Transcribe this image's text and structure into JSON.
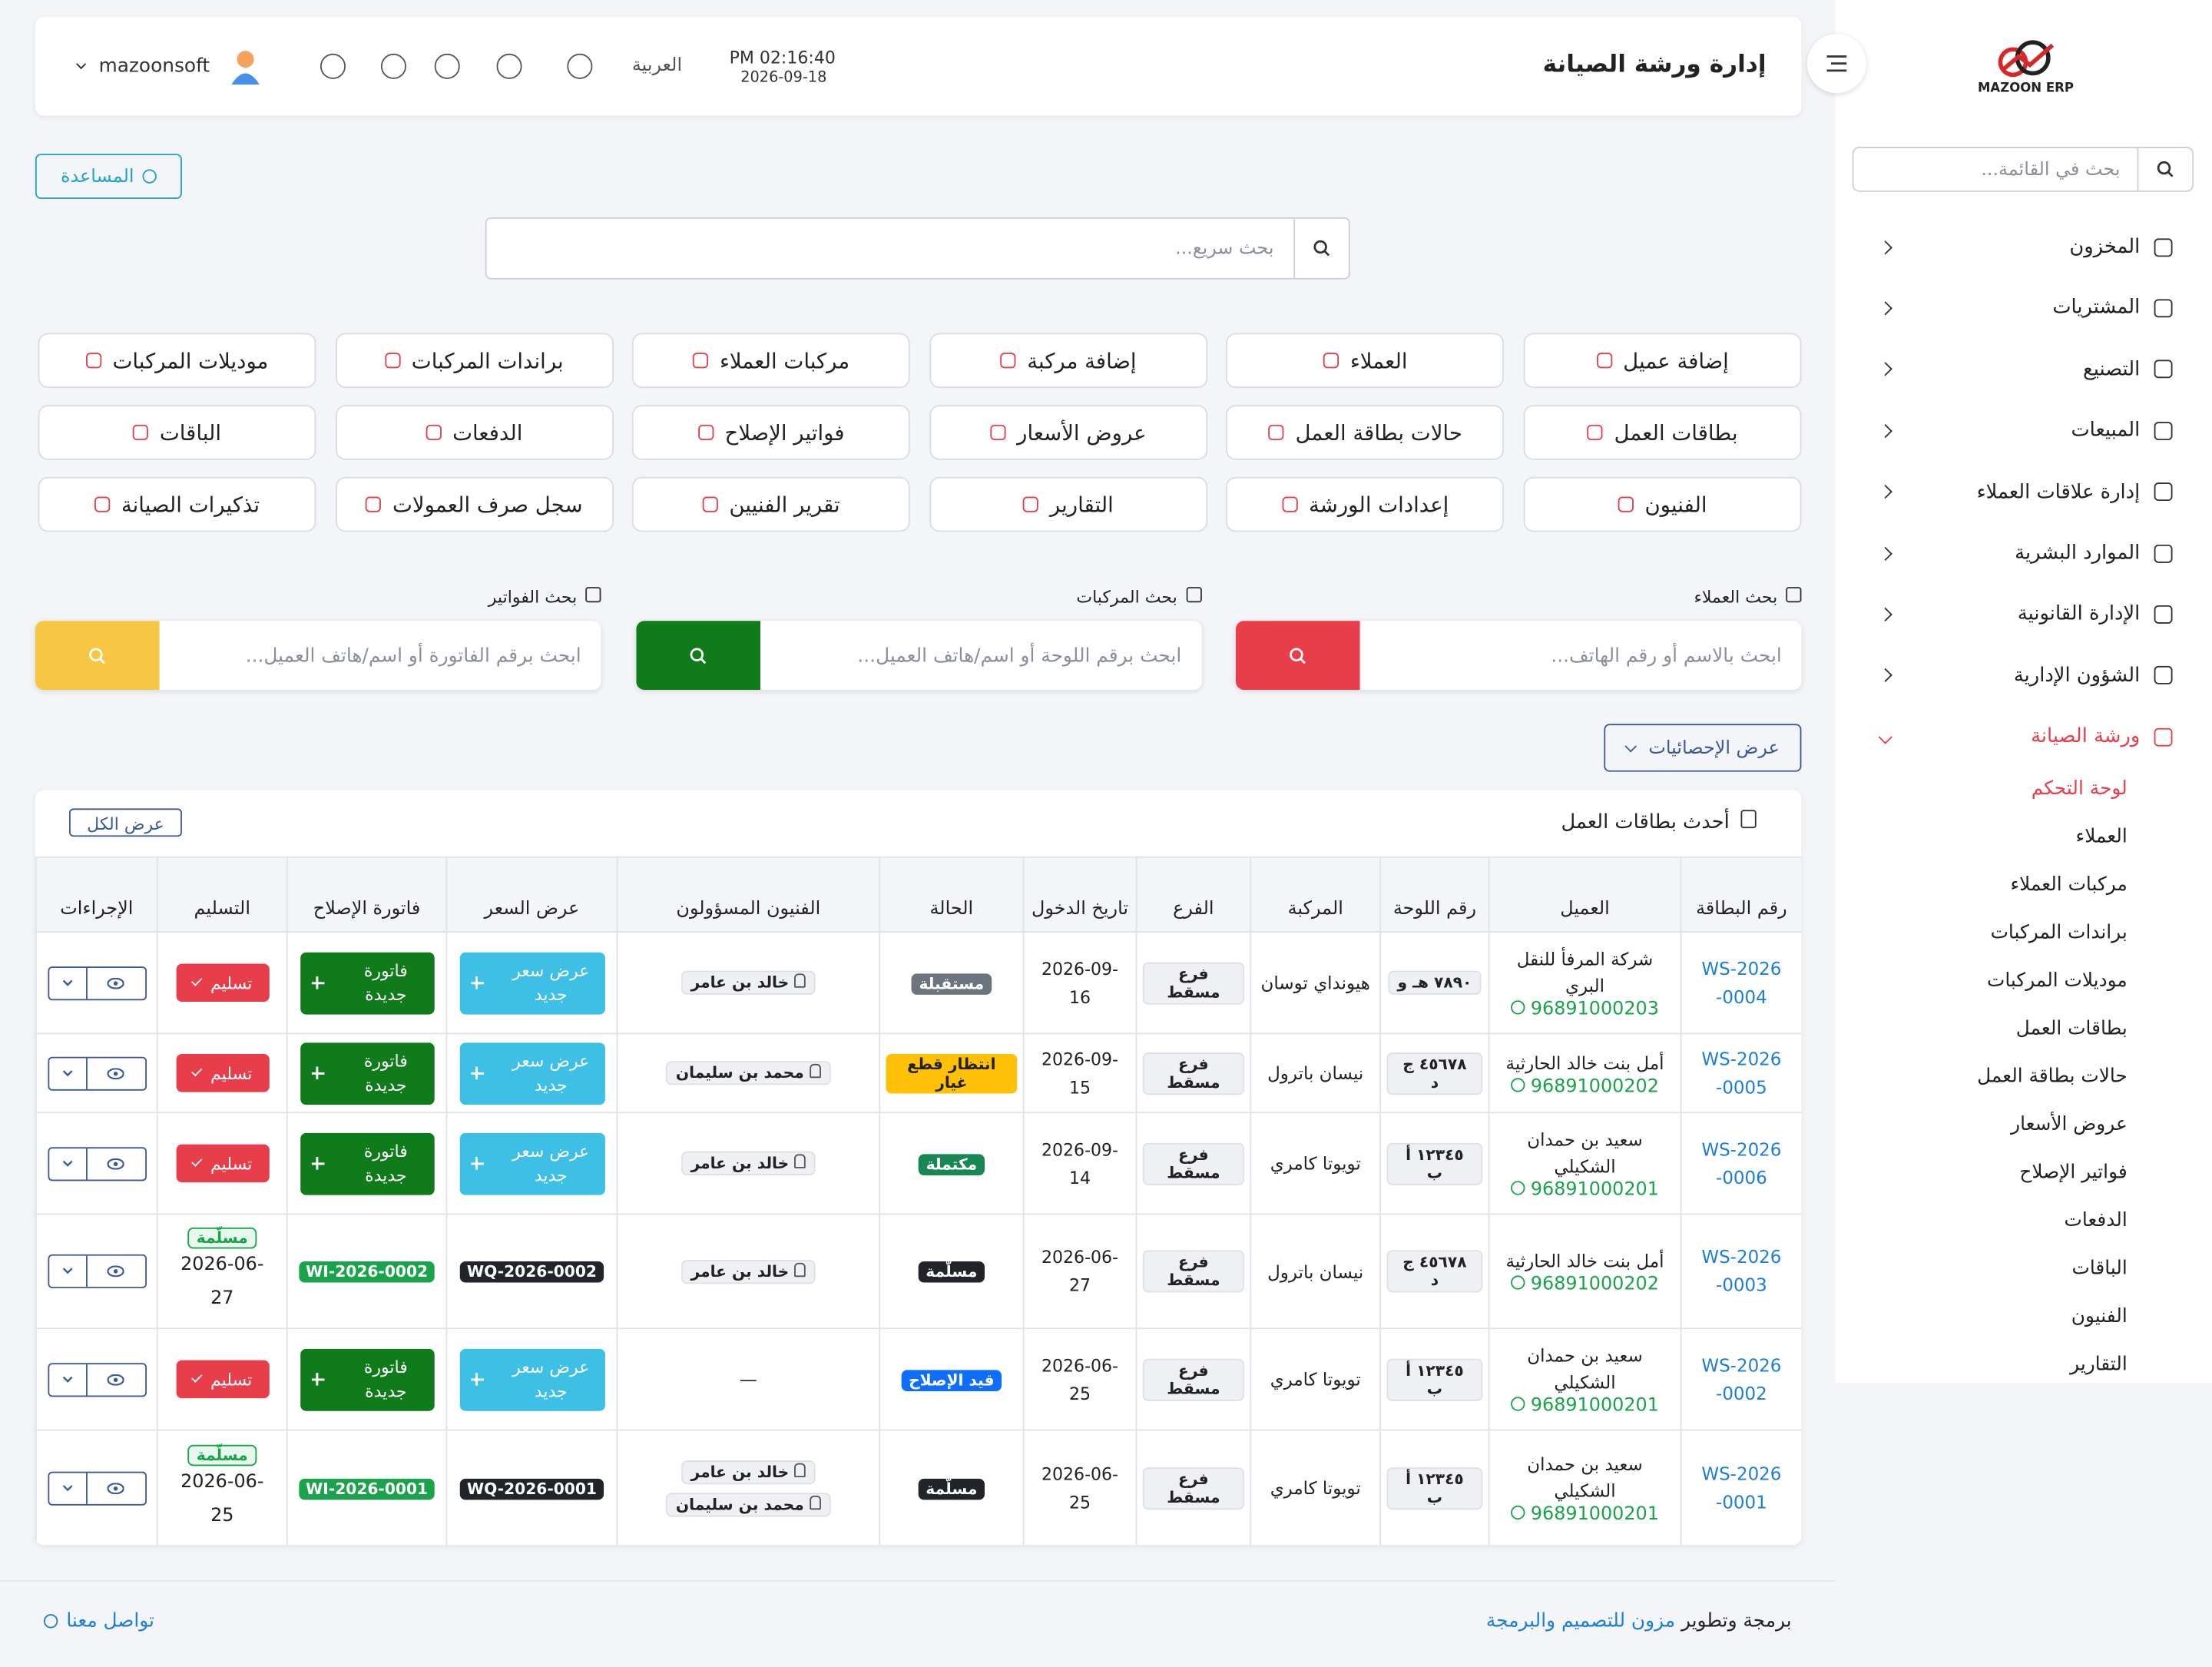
{
  "sidebar": {
    "logo": "MAZOON ERP",
    "search_placeholder": "بحث في القائمة...",
    "menu": [
      "المخزون",
      "المشتريات",
      "التصنيع",
      "المبيعات",
      "إدارة علاقات العملاء",
      "الموارد البشرية",
      "الإدارة القانونية",
      "الشؤون الإدارية",
      "ورشة الصيانة"
    ],
    "active_menu": 8,
    "submenu": [
      "لوحة التحكم",
      "العملاء",
      "مركبات العملاء",
      "براندات المركبات",
      "موديلات المركبات",
      "بطاقات العمل",
      "حالات بطاقة العمل",
      "عروض الأسعار",
      "فواتير الإصلاح",
      "الدفعات",
      "الباقات",
      "الفنيون",
      "التقارير"
    ],
    "active_submenu": 0
  },
  "header": {
    "title": "إدارة ورشة الصيانة",
    "time": "PM 02:16:40",
    "date": "2026-09-18",
    "language": "العربية",
    "user": "mazoonsoft"
  },
  "help_button": "المساعدة",
  "quick_search_placeholder": "بحث سريع...",
  "shortcuts": [
    "إضافة عميل",
    "العملاء",
    "إضافة مركبة",
    "مركبات العملاء",
    "براندات المركبات",
    "موديلات المركبات",
    "بطاقات العمل",
    "حالات بطاقة العمل",
    "عروض الأسعار",
    "فواتير الإصلاح",
    "الدفعات",
    "الباقات",
    "الفنيون",
    "إعدادات الورشة",
    "التقارير",
    "تقرير الفنيين",
    "سجل صرف العمولات",
    "تذكيرات الصيانة"
  ],
  "search_boxes": [
    {
      "label": "بحث العملاء",
      "placeholder": "ابحث بالاسم أو رقم الهاتف...",
      "color": "#e83e4c"
    },
    {
      "label": "بحث المركبات",
      "placeholder": "ابحث برقم اللوحة أو اسم/هاتف العميل...",
      "color": "#0f7b1a"
    },
    {
      "label": "بحث الفواتير",
      "placeholder": "ابحث برقم الفاتورة أو اسم/هاتف العميل...",
      "color": "#f7c744"
    }
  ],
  "stats_button": "عرض الإحصائيات",
  "table": {
    "title": "أحدث بطاقات العمل",
    "view_all": "عرض الكل",
    "columns": [
      "رقم البطاقة",
      "العميل",
      "رقم اللوحة",
      "المركبة",
      "الفرع",
      "تاريخ الدخول",
      "الحالة",
      "الفنيون المسؤولون",
      "عرض السعر",
      "فاتورة الإصلاح",
      "التسليم",
      "الإجراءات"
    ],
    "new_quote": "عرض سعر جديد",
    "new_invoice": "فاتورة جديدة",
    "deliver": "تسليم",
    "delivered": "مسلّمة",
    "empty": "—",
    "rows": [
      {
        "card": "WS-2026-0004",
        "client": "شركة المرفأ للنقل البري",
        "phone": "96891000203",
        "plate": "٧٨٩٠ هـ و",
        "vehicle": "هيونداي توسان",
        "branch": "فرع مسقط",
        "date": "2026-09-16",
        "status": "مستقبلة",
        "status_color": "#6c757d",
        "techs": [
          "خالد بن عامر"
        ],
        "quote": null,
        "invoice": null,
        "delivered_date": null
      },
      {
        "card": "WS-2026-0005",
        "client": "أمل بنت خالد الحارثية",
        "phone": "96891000202",
        "plate": "٤٥٦٧٨ ج د",
        "vehicle": "نيسان باترول",
        "branch": "فرع مسقط",
        "date": "2026-09-15",
        "status": "انتظار قطع غيار",
        "status_color": "#ffc107",
        "techs": [
          "محمد بن سليمان"
        ],
        "quote": null,
        "invoice": null,
        "delivered_date": null
      },
      {
        "card": "WS-2026-0006",
        "client": "سعيد بن حمدان الشكيلي",
        "phone": "96891000201",
        "plate": "١٢٣٤٥ أ ب",
        "vehicle": "تويوتا كامري",
        "branch": "فرع مسقط",
        "date": "2026-09-14",
        "status": "مكتملة",
        "status_color": "#198754",
        "techs": [
          "خالد بن عامر"
        ],
        "quote": null,
        "invoice": null,
        "delivered_date": null
      },
      {
        "card": "WS-2026-0003",
        "client": "أمل بنت خالد الحارثية",
        "phone": "96891000202",
        "plate": "٤٥٦٧٨ ج د",
        "vehicle": "نيسان باترول",
        "branch": "فرع مسقط",
        "date": "2026-06-27",
        "status": "مسلّمة",
        "status_color": "#212529",
        "techs": [
          "خالد بن عامر"
        ],
        "quote": "WQ-2026-0002",
        "invoice": "WI-2026-0002",
        "delivered_date": "2026-06-27"
      },
      {
        "card": "WS-2026-0002",
        "client": "سعيد بن حمدان الشكيلي",
        "phone": "96891000201",
        "plate": "١٢٣٤٥ أ ب",
        "vehicle": "تويوتا كامري",
        "branch": "فرع مسقط",
        "date": "2026-06-25",
        "status": "قيد الإصلاح",
        "status_color": "#0d6efd",
        "techs": [],
        "quote": null,
        "invoice": null,
        "delivered_date": null
      },
      {
        "card": "WS-2026-0001",
        "client": "سعيد بن حمدان الشكيلي",
        "phone": "96891000201",
        "plate": "١٢٣٤٥ أ ب",
        "vehicle": "تويوتا كامري",
        "branch": "فرع مسقط",
        "date": "2026-06-25",
        "status": "مسلّمة",
        "status_color": "#212529",
        "techs": [
          "خالد بن عامر",
          "محمد بن سليمان"
        ],
        "quote": "WQ-2026-0001",
        "invoice": "WI-2026-0001",
        "delivered_date": "2026-06-25"
      }
    ]
  },
  "footer": {
    "credit": "برمجة وتطوير",
    "company": "مزون للتصميم والبرمجة",
    "contact": "تواصل معنا"
  }
}
